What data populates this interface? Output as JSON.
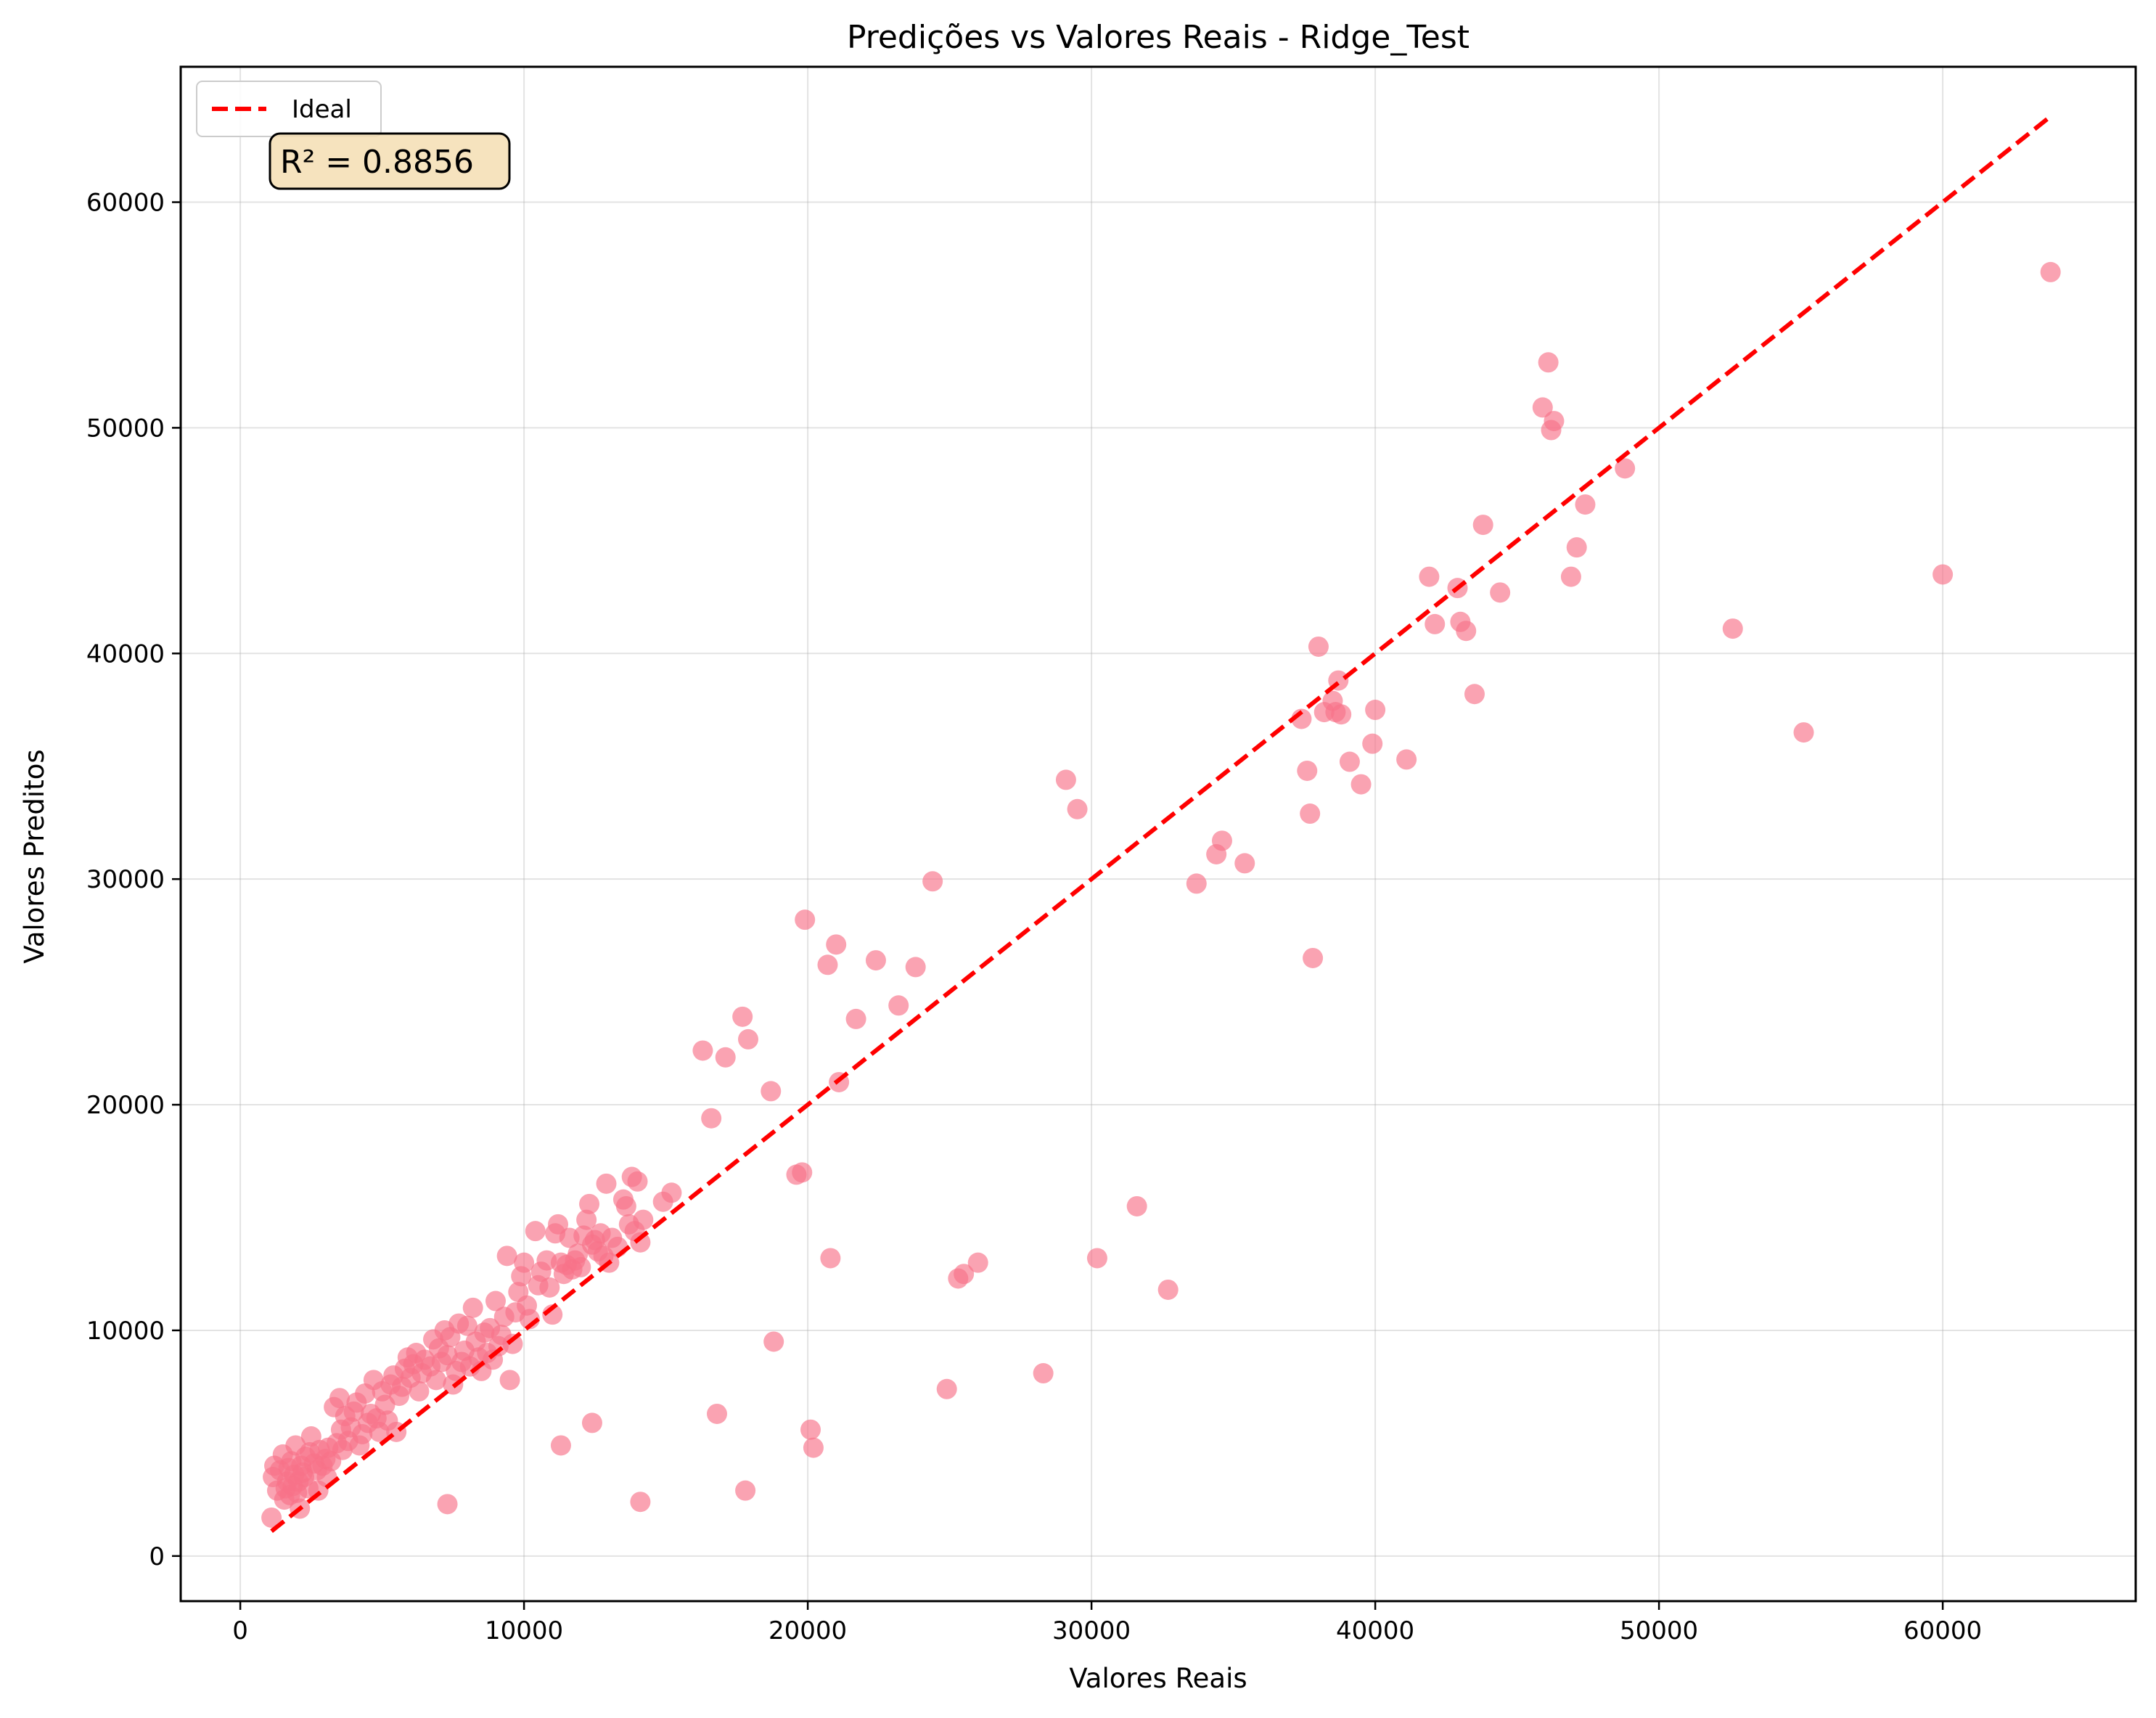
{
  "chart_data": {
    "type": "scatter",
    "title": "Predições vs Valores Reais - Ridge_Test",
    "xlabel": "Valores Reais",
    "ylabel": "Valores Preditos",
    "xlim": [
      -2100,
      66800
    ],
    "ylim": [
      -2000,
      66000
    ],
    "xticks": [
      0,
      10000,
      20000,
      30000,
      40000,
      50000,
      60000
    ],
    "yticks": [
      0,
      10000,
      20000,
      30000,
      40000,
      50000,
      60000
    ],
    "xtick_labels": [
      "0",
      "10000",
      "20000",
      "30000",
      "40000",
      "50000",
      "60000"
    ],
    "ytick_labels": [
      "0",
      "10000",
      "20000",
      "30000",
      "40000",
      "50000",
      "60000"
    ],
    "grid": true,
    "legend": {
      "position": "top-left",
      "entries": [
        {
          "label": "Ideal",
          "color": "#ff0000",
          "style": "dashed"
        }
      ]
    },
    "annotation": {
      "text": "R² = 0.8856",
      "position": "top-left"
    },
    "ideal_line": {
      "x": [
        1100,
        63800
      ],
      "y": [
        1100,
        63800
      ],
      "color": "#ff0000"
    },
    "marker_color": "#f77189",
    "series": [
      {
        "x": [
          1100,
          1150,
          1200,
          1300,
          1400,
          1500,
          1550,
          1600,
          1650,
          1700,
          1750,
          1800,
          1850,
          1900,
          1950,
          2000,
          2050,
          2100,
          2150,
          2200,
          2250,
          2300,
          2400,
          2450,
          2500,
          2600,
          2700,
          2750,
          2800,
          2900,
          3000,
          3050,
          3100,
          3200,
          3300,
          3400,
          3500,
          3550,
          3600,
          3700,
          3800,
          3900,
          4000,
          4100,
          4200,
          4300,
          4400,
          4500,
          4600,
          4700,
          4800,
          4900,
          5000,
          5100,
          5200,
          5300,
          5400,
          5500,
          5600,
          5700,
          5800,
          5900,
          6000,
          6100,
          6200,
          6300,
          6400,
          6500,
          6700,
          6800,
          6900,
          7000,
          7100,
          7200,
          7300,
          7400,
          7500,
          7600,
          7700,
          7800,
          7900,
          8000,
          8100,
          8200,
          8300,
          8400,
          8500,
          8600,
          8700,
          8800,
          8900,
          9000,
          9100,
          9200,
          9300,
          9400,
          9500,
          9600,
          9700,
          9800,
          9900,
          10000,
          10100,
          10200,
          10400,
          10500,
          10600,
          10800,
          10900,
          11000,
          11100,
          11200,
          11300,
          11400,
          11500,
          11600,
          11700,
          11800,
          11900,
          12000,
          12100,
          12200,
          12300,
          12400,
          12500,
          12600,
          12700,
          12800,
          12900,
          13000,
          13100,
          13300,
          13500,
          13600,
          13700,
          13800,
          13900,
          14000,
          14100,
          14200,
          14900,
          15200,
          7300,
          11300,
          12400,
          14100,
          16300,
          16600,
          16800,
          17100,
          17700,
          17800,
          17900,
          18700,
          18800,
          19600,
          19800,
          19900,
          20100,
          20200,
          20700,
          20800,
          21000,
          21100,
          21700,
          22400,
          23200,
          23800,
          24400,
          24900,
          25300,
          25500,
          26000,
          28300,
          29100,
          29500,
          30200,
          31600,
          32700,
          33700,
          34400,
          34600,
          35400,
          37400,
          37600,
          37700,
          37800,
          38000,
          38200,
          38500,
          38600,
          38700,
          38800,
          39100,
          39500,
          39900,
          40000,
          41100,
          41900,
          42100,
          42900,
          43000,
          43200,
          43500,
          43800,
          44400,
          45900,
          46100,
          46200,
          46300,
          46900,
          47100,
          47400,
          48800,
          52600,
          55100,
          60000,
          63800
        ],
        "y": [
          1700,
          3500,
          4000,
          2900,
          3800,
          4500,
          2500,
          3000,
          3300,
          3900,
          2700,
          4200,
          3100,
          3600,
          4900,
          2800,
          3300,
          2100,
          4000,
          3700,
          3500,
          4400,
          3000,
          4600,
          5300,
          4100,
          3800,
          2900,
          4700,
          4000,
          4300,
          3500,
          4800,
          4200,
          6600,
          5000,
          7000,
          5600,
          4700,
          6200,
          5100,
          5700,
          6400,
          6800,
          4900,
          5400,
          7200,
          5900,
          6300,
          7800,
          6100,
          5500,
          7300,
          6700,
          6000,
          7600,
          8000,
          5500,
          7100,
          7500,
          8300,
          8800,
          7900,
          8500,
          9000,
          7300,
          8100,
          8700,
          8400,
          9600,
          7800,
          9200,
          8600,
          10000,
          8900,
          9700,
          7600,
          8200,
          10300,
          8600,
          9100,
          10200,
          8400,
          11000,
          9500,
          8800,
          8200,
          9900,
          9000,
          10100,
          8700,
          11300,
          9300,
          9800,
          10600,
          13300,
          7800,
          9400,
          10800,
          11700,
          12400,
          13000,
          11100,
          10500,
          14400,
          12000,
          12600,
          13100,
          11900,
          10700,
          14300,
          14700,
          13000,
          12500,
          12900,
          14100,
          12700,
          13100,
          13400,
          12800,
          14200,
          14900,
          15600,
          13800,
          14000,
          13500,
          14300,
          13300,
          16500,
          13000,
          14100,
          13700,
          15800,
          15500,
          14700,
          16800,
          14400,
          16600,
          13900,
          14900,
          15700,
          16100,
          2300,
          4900,
          5900,
          2400,
          22400,
          19400,
          6300,
          22100,
          23900,
          2900,
          22900,
          20600,
          9500,
          16900,
          17000,
          28200,
          5600,
          4800,
          26200,
          13200,
          27100,
          21000,
          23800,
          26400,
          24400,
          26100,
          29900,
          7400,
          12300,
          12500,
          13000,
          8100,
          34400,
          33100,
          13200,
          15500,
          11800,
          29800,
          31100,
          31700,
          30700,
          37100,
          34800,
          32900,
          26500,
          40300,
          37400,
          37900,
          37400,
          38800,
          37300,
          35200,
          34200,
          36000,
          37500,
          35300,
          43400,
          41300,
          42900,
          41400,
          41000,
          38200,
          45700,
          42700,
          50900,
          52900,
          49900,
          50300,
          43400,
          44700,
          46600,
          48200,
          41100,
          36500,
          43500,
          56900
        ]
      }
    ]
  }
}
